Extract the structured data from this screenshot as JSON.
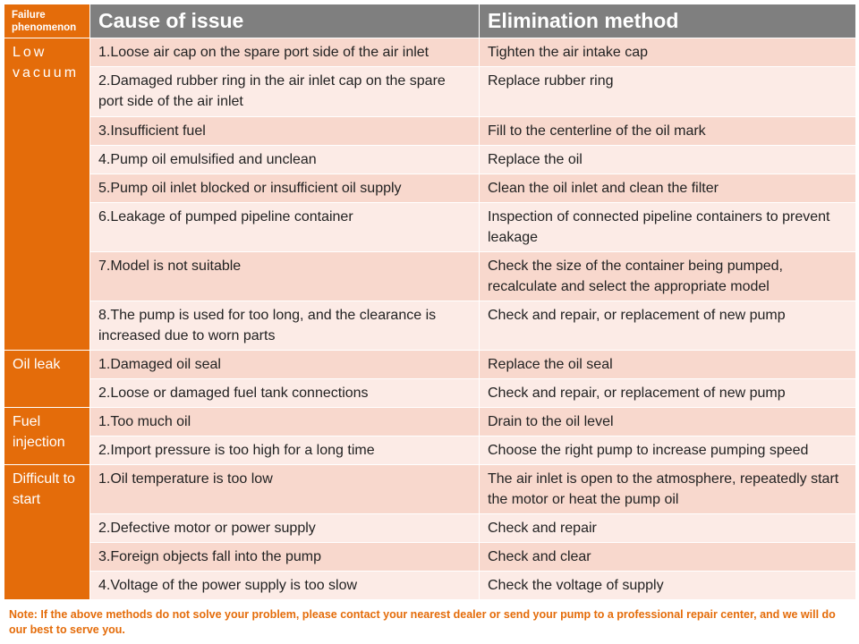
{
  "header": {
    "failure_phenomenon": "Failure phenomenon",
    "cause": "Cause of issue",
    "method": "Elimination method"
  },
  "groups": [
    {
      "label": "Low vacuum",
      "rows": [
        {
          "cause": "1.Loose air cap on the spare port side of the air inlet",
          "method": "Tighten the air intake cap"
        },
        {
          "cause": "2.Damaged rubber ring in the air inlet cap on the spare port side of the air inlet",
          "method": "Replace rubber ring"
        },
        {
          "cause": "3.Insufficient fuel",
          "method": "Fill to the centerline of the oil mark"
        },
        {
          "cause": "4.Pump oil emulsified and unclean",
          "method": "Replace the oil"
        },
        {
          "cause": "5.Pump oil inlet blocked or insufficient oil supply",
          "method": "Clean the oil inlet and clean the filter"
        },
        {
          "cause": "6.Leakage of pumped pipeline container",
          "method": "Inspection of connected pipeline containers to prevent leakage"
        },
        {
          "cause": "7.Model is not suitable",
          "method": "Check the size of the container being pumped, recalculate and select the appropriate model"
        },
        {
          "cause": "8.The pump is used for too long, and the clearance is increased due to worn parts",
          "method": "Check and repair, or replacement of new pump"
        }
      ]
    },
    {
      "label": "Oil leak",
      "rows": [
        {
          "cause": "1.Damaged oil seal",
          "method": "Replace the oil seal"
        },
        {
          "cause": "2.Loose or damaged fuel tank connections",
          "method": "Check and repair, or replacement of new pump"
        }
      ]
    },
    {
      "label": "Fuel injection",
      "rows": [
        {
          "cause": "1.Too much oil",
          "method": "Drain to the oil level"
        },
        {
          "cause": "2.Import pressure is too high for a long time",
          "method": "Choose the right pump to increase pumping speed"
        }
      ]
    },
    {
      "label": "Difficult to start",
      "rows": [
        {
          "cause": "1.Oil temperature is too low",
          "method": "The air inlet is open to the atmosphere, repeatedly start the motor or heat the pump oil"
        },
        {
          "cause": "2.Defective motor or power supply",
          "method": "Check and repair"
        },
        {
          "cause": "3.Foreign objects fall into the pump",
          "method": "Check and clear"
        },
        {
          "cause": "4.Voltage of the power supply is too slow",
          "method": "Check the voltage of supply"
        }
      ]
    }
  ],
  "note": "Note: If the above methods do not solve your problem, please contact your nearest dealer or send your pump to a professional repair center, and we will do our best to serve you.",
  "colors": {
    "accent": "#e46c0a",
    "header": "#7f7f7f",
    "row_dark": "#f8d8cd",
    "row_light": "#fcebe6"
  }
}
